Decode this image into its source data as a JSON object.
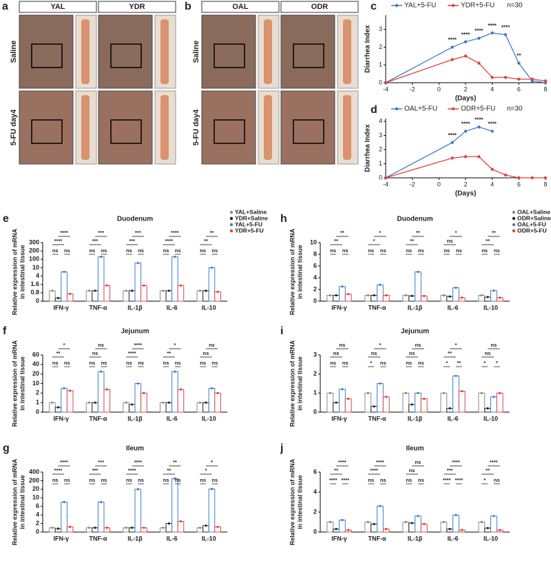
{
  "photo_panels": [
    {
      "letter": "a",
      "columns": [
        "YAL",
        "YDR"
      ],
      "rows": [
        "Saline",
        "5-FU day4"
      ]
    },
    {
      "letter": "b",
      "columns": [
        "OAL",
        "ODR"
      ],
      "rows": [
        "Saline",
        "5-FU day4"
      ]
    }
  ],
  "chart_data": [
    {
      "type": "line",
      "panel": "c",
      "xlabel": "(Days)",
      "ylabel": "Diarrhea Index",
      "note": "n=30",
      "x": [
        -4,
        1,
        2,
        3,
        4,
        5,
        6,
        7,
        8
      ],
      "xlim": [
        -4,
        8
      ],
      "xticks": [
        -4,
        -2,
        0,
        2,
        4,
        6,
        8
      ],
      "ylim": [
        0,
        3.8
      ],
      "yticks": [
        0,
        1,
        2,
        3
      ],
      "zero_line": true,
      "significance": [
        null,
        "****",
        "****",
        "****",
        "****",
        "****",
        "**",
        null,
        null
      ],
      "series": [
        {
          "name": "YAL+5-FU",
          "color": "#3d7cc9",
          "values": [
            0,
            2.0,
            2.3,
            2.5,
            2.8,
            2.7,
            1.1,
            0.1,
            0.0
          ]
        },
        {
          "name": "YDR+5-FU",
          "color": "#e0403f",
          "values": [
            0,
            1.3,
            1.5,
            1.1,
            0.3,
            0.3,
            0.2,
            0.2,
            0.1
          ]
        }
      ]
    },
    {
      "type": "line",
      "panel": "d",
      "xlabel": "(Days)",
      "ylabel": "Diarrhea Index",
      "note": "n=30",
      "x": [
        -4,
        1,
        2,
        3,
        4,
        5,
        6,
        7,
        8
      ],
      "xlim": [
        -4,
        8
      ],
      "xticks": [
        -4,
        -2,
        0,
        2,
        4,
        6,
        8
      ],
      "ylim": [
        0,
        4.2
      ],
      "yticks": [
        0,
        1,
        2,
        3,
        4
      ],
      "zero_line": true,
      "significance": [
        null,
        "****",
        "****",
        "****",
        "****",
        null,
        null,
        null,
        null
      ],
      "series": [
        {
          "name": "OAL+5-FU",
          "color": "#3d7cc9",
          "values": [
            0,
            2.5,
            3.3,
            3.6,
            3.3,
            null,
            null,
            null,
            null
          ]
        },
        {
          "name": "ODR+5-FU",
          "color": "#e0403f",
          "values": [
            0,
            1.4,
            1.5,
            1.5,
            0.6,
            0.2,
            0.0,
            0.0,
            0.0
          ]
        }
      ]
    },
    {
      "type": "bar",
      "panel": "e",
      "title": "Duodenum",
      "ylabel": [
        "Relative expression of mRNA",
        "in intestinal tissue"
      ],
      "categories": [
        "IFN-γ",
        "TNF-α",
        "IL-1β",
        "IL-6",
        "IL-10"
      ],
      "broken_axis": true,
      "ylim": [
        0,
        300
      ],
      "yticks": [
        0,
        0.8,
        1.6,
        4,
        10,
        100,
        200,
        300
      ],
      "significance": [
        [
          "ns",
          "ns",
          "****",
          "****"
        ],
        [
          "ns",
          "ns",
          "***",
          "***"
        ],
        [
          "ns",
          "ns",
          "***",
          "***"
        ],
        [
          "ns",
          "ns",
          "****",
          "****"
        ],
        [
          "ns",
          "ns",
          "**",
          "**"
        ]
      ],
      "series": [
        {
          "name": "YAL+Saline",
          "color": "#888888",
          "values": [
            1,
            1,
            1,
            1,
            1
          ]
        },
        {
          "name": "YDR+Saline",
          "color": "#222222",
          "values": [
            0.3,
            1,
            1,
            1,
            1
          ]
        },
        {
          "name": "YAL+5-FU",
          "color": "#3d7cc9",
          "values": [
            7,
            130,
            60,
            130,
            10
          ]
        },
        {
          "name": "YDR+5-FU",
          "color": "#e0403f",
          "values": [
            0.7,
            1.5,
            1.5,
            1.5,
            0.9
          ]
        }
      ]
    },
    {
      "type": "bar",
      "panel": "f",
      "title": "Jejunum",
      "ylabel": [
        "Relative expression of mRNA",
        "in intestinal tissue"
      ],
      "categories": [
        "IFN-γ",
        "TNF-α",
        "IL-1β",
        "IL-6",
        "IL-10"
      ],
      "broken_axis": true,
      "ylim": [
        0,
        60
      ],
      "yticks": [
        0,
        1,
        2,
        10,
        20,
        40,
        60
      ],
      "significance": [
        [
          "ns",
          "ns",
          "**",
          "*"
        ],
        [
          "ns",
          "ns",
          "ns",
          "ns"
        ],
        [
          "ns",
          "ns",
          "****",
          "****"
        ],
        [
          "ns",
          "ns",
          "**",
          "*"
        ],
        [
          "ns",
          "ns",
          "ns",
          "ns"
        ]
      ],
      "series": [
        {
          "color": "#888888",
          "values": [
            1,
            1,
            1,
            1,
            1
          ]
        },
        {
          "color": "#222222",
          "values": [
            0.5,
            1,
            0.8,
            1,
            1
          ]
        },
        {
          "color": "#3d7cc9",
          "values": [
            6,
            25,
            10,
            25,
            6
          ]
        },
        {
          "color": "#e0403f",
          "values": [
            4,
            5,
            2,
            5,
            2
          ]
        }
      ]
    },
    {
      "type": "bar",
      "panel": "g",
      "title": "Ileum",
      "ylabel": [
        "Relative expression of mRNA",
        "in intestinal tissue"
      ],
      "categories": [
        "IFN-γ",
        "TNF-α",
        "IL-1β",
        "IL-6",
        "IL-10"
      ],
      "broken_axis": true,
      "ylim": [
        0,
        400
      ],
      "yticks": [
        0,
        2,
        4,
        6,
        10,
        20,
        200,
        400
      ],
      "significance": [
        [
          "ns",
          "ns",
          "****",
          "****"
        ],
        [
          "ns",
          "ns",
          "***",
          "***"
        ],
        [
          "ns",
          "ns",
          "****",
          "****"
        ],
        [
          "ns",
          "ns",
          "**",
          "**"
        ],
        [
          "ns",
          "ns",
          "*",
          "*"
        ]
      ],
      "series": [
        {
          "color": "#888888",
          "values": [
            1,
            1,
            1,
            1,
            1
          ]
        },
        {
          "color": "#222222",
          "values": [
            0.8,
            1,
            1,
            2,
            1.5
          ]
        },
        {
          "color": "#3d7cc9",
          "values": [
            8,
            8,
            20,
            250,
            25
          ]
        },
        {
          "color": "#e0403f",
          "values": [
            1.2,
            1,
            1,
            2.5,
            1.2
          ]
        }
      ]
    },
    {
      "type": "bar",
      "panel": "h",
      "title": "Duodenum",
      "ylabel": [
        "Relative expression of mRNA",
        "in intestinal tissue"
      ],
      "categories": [
        "IFN-γ",
        "TNF-α",
        "IL-1β",
        "IL-6",
        "IL-10"
      ],
      "broken_axis": false,
      "ylim": [
        0,
        10
      ],
      "yticks": [
        0,
        2,
        4,
        6,
        8,
        10
      ],
      "significance": [
        [
          "ns",
          "ns",
          "**",
          "**"
        ],
        [
          "ns",
          "ns",
          "*",
          "*"
        ],
        [
          "ns",
          "ns",
          "**",
          "**"
        ],
        [
          "ns",
          "ns",
          "ns",
          "*"
        ],
        [
          "ns",
          "ns",
          "**",
          "**"
        ]
      ],
      "series": [
        {
          "name": "OAL+Saline",
          "color": "#888888",
          "values": [
            1,
            1,
            1,
            1,
            1
          ]
        },
        {
          "name": "ODR+Saline",
          "color": "#222222",
          "values": [
            1,
            1,
            0.9,
            0.8,
            0.7
          ]
        },
        {
          "name": "OAL+5-FU",
          "color": "#3d7cc9",
          "values": [
            2.5,
            2.8,
            5,
            2.3,
            1.8
          ]
        },
        {
          "name": "ODR+5-FU",
          "color": "#e0403f",
          "values": [
            1.2,
            1,
            0.9,
            0.6,
            0.6
          ]
        }
      ]
    },
    {
      "type": "bar",
      "panel": "i",
      "title": "Jejunum",
      "ylabel": [
        "Relative expression of mRNA",
        "in intestinal tissue"
      ],
      "categories": [
        "IFN-γ",
        "TNF-α",
        "IL-1β",
        "IL-6",
        "IL-10"
      ],
      "broken_axis": false,
      "ylim": [
        0,
        3
      ],
      "yticks": [
        0,
        1,
        2,
        3
      ],
      "significance": [
        [
          "ns",
          "ns",
          "ns",
          "ns"
        ],
        [
          "*",
          "ns",
          "ns",
          "*"
        ],
        [
          "ns",
          "ns",
          "ns",
          "ns"
        ],
        [
          "*",
          "**",
          "**",
          "*"
        ],
        [
          "*",
          "*",
          "ns",
          "ns"
        ]
      ],
      "series": [
        {
          "color": "#888888",
          "values": [
            1,
            1,
            1,
            1,
            1
          ]
        },
        {
          "color": "#222222",
          "values": [
            0.5,
            0.3,
            0.4,
            0.2,
            0.2
          ]
        },
        {
          "color": "#3d7cc9",
          "values": [
            1.2,
            1.5,
            1,
            1.9,
            0.8
          ]
        },
        {
          "color": "#e0403f",
          "values": [
            0.7,
            0.8,
            0.7,
            1.1,
            1
          ]
        }
      ]
    },
    {
      "type": "bar",
      "panel": "j",
      "title": "Ileum",
      "ylabel": [
        "Relative expression of mRNA",
        "in intestinal tissue"
      ],
      "categories": [
        "IFN-γ",
        "TNF-α",
        "IL-1β",
        "IL-6",
        "IL-10"
      ],
      "broken_axis": false,
      "ylim": [
        0,
        6
      ],
      "yticks": [
        0,
        2,
        4,
        6
      ],
      "significance": [
        [
          "****",
          "****",
          "**",
          "****"
        ],
        [
          "ns",
          "ns",
          "****",
          "****"
        ],
        [
          "ns",
          "ns",
          "ns",
          "ns"
        ],
        [
          "****",
          "****",
          "***",
          "****"
        ],
        [
          "*",
          "ns",
          "**",
          "****"
        ]
      ],
      "series": [
        {
          "color": "#888888",
          "values": [
            1,
            1,
            1,
            1,
            1
          ]
        },
        {
          "color": "#222222",
          "values": [
            0.3,
            0.8,
            0.9,
            0.3,
            0.4
          ]
        },
        {
          "color": "#3d7cc9",
          "values": [
            1.2,
            2.6,
            1.6,
            1.7,
            1.6
          ]
        },
        {
          "color": "#e0403f",
          "values": [
            0.2,
            0.3,
            0.8,
            0.2,
            0.2
          ]
        }
      ]
    }
  ]
}
